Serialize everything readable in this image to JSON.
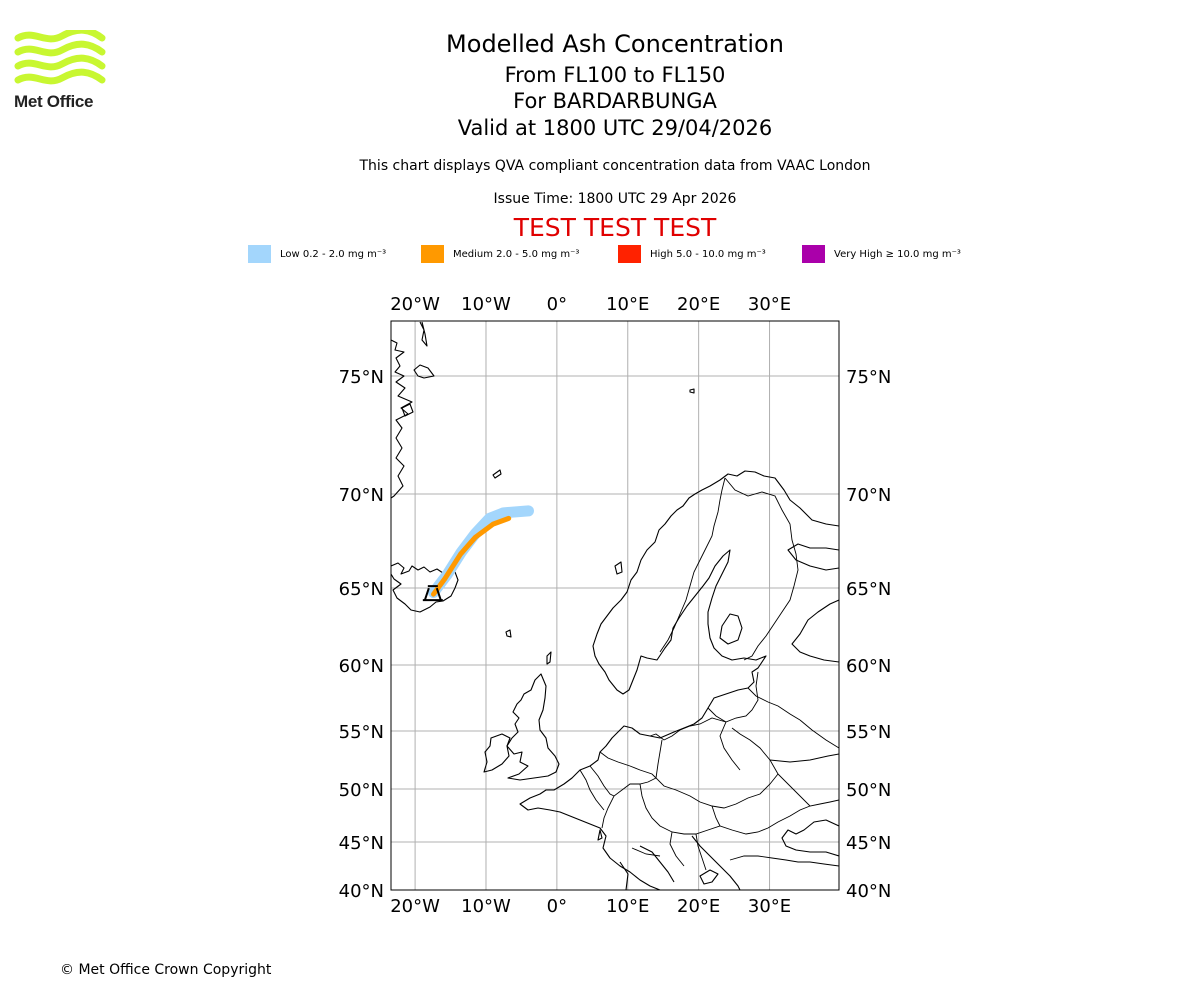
{
  "logo": {
    "text": "Met Office",
    "colors": {
      "waves": "#c8f731",
      "text": "#222222"
    }
  },
  "header": {
    "title": "Modelled Ash Concentration",
    "levels": "From FL100 to FL150",
    "volcano": "For BARDARBUNGA",
    "valid": "Valid at 1800 UTC 29/04/2026",
    "compliance": "This chart displays QVA compliant concentration data from VAAC London",
    "issue": "Issue Time: 1800 UTC 29 Apr 2026",
    "test_banner": "TEST TEST TEST"
  },
  "legend": [
    {
      "label": "Low 0.2 - 2.0 mg m⁻³",
      "color": "#a3d6fc"
    },
    {
      "label": "Medium 2.0 - 5.0 mg m⁻³",
      "color": "#ff9900"
    },
    {
      "label": "High 5.0 - 10.0 mg m⁻³",
      "color": "#ff2200"
    },
    {
      "label": "Very High  ≥  10.0 mg m⁻³",
      "color": "#aa00aa"
    }
  ],
  "map": {
    "lon_ticks": [
      "20°W",
      "10°W",
      "0°",
      "10°E",
      "20°E",
      "30°E"
    ],
    "lat_ticks": [
      "75°N",
      "70°N",
      "65°N",
      "60°N",
      "55°N",
      "50°N",
      "45°N",
      "40°N"
    ],
    "lon_values": [
      -20,
      -10,
      0,
      10,
      20,
      30
    ],
    "lat_values": [
      75,
      70,
      65,
      60,
      55,
      50,
      45,
      40
    ],
    "extent": {
      "lon_min": -23.4,
      "lon_max": 39.8,
      "lat_min": 40,
      "lat_max": 77
    },
    "volcano": {
      "name": "BARDARBUNGA",
      "lon": -17.5,
      "lat": 64.6
    },
    "plume": {
      "low_path": [
        [
          -17.4,
          64.7
        ],
        [
          -15.5,
          65.7
        ],
        [
          -13.5,
          66.9
        ],
        [
          -11.5,
          67.9
        ],
        [
          -9.5,
          68.7
        ],
        [
          -7.5,
          69.0
        ],
        [
          -4.0,
          69.1
        ]
      ],
      "medium_path": [
        [
          -17.4,
          64.6
        ],
        [
          -15.8,
          65.5
        ],
        [
          -13.6,
          66.8
        ],
        [
          -11.5,
          67.7
        ],
        [
          -9.0,
          68.4
        ],
        [
          -6.8,
          68.7
        ]
      ]
    }
  },
  "copyright": "© Met Office Crown Copyright"
}
